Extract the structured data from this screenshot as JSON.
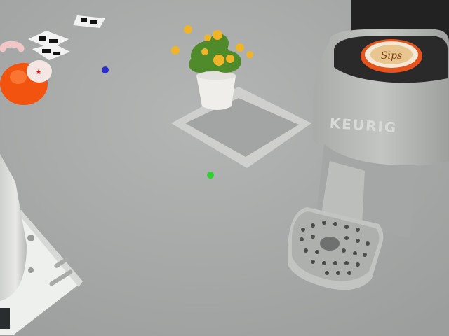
{
  "scene": {
    "description_visible_text": {
      "machine_brand": "KEURIG",
      "pod_label": "Sips"
    },
    "colors": {
      "floor": "#a9abaa",
      "tape": "#cfd0cd",
      "watering_can": "#f2530f",
      "machine_body": "#b9bbb8",
      "machine_dark": "#222222",
      "pod_rim": "#e6531c",
      "flower": "#f0b428",
      "leaves": "#4f8a2b",
      "marker_blue": "#2b2fd0",
      "marker_green": "#2fd12f"
    },
    "markers": [
      {
        "name": "blue-dot",
        "color": "#2b2fd0"
      },
      {
        "name": "green-dot",
        "color": "#2fd12f"
      }
    ]
  }
}
